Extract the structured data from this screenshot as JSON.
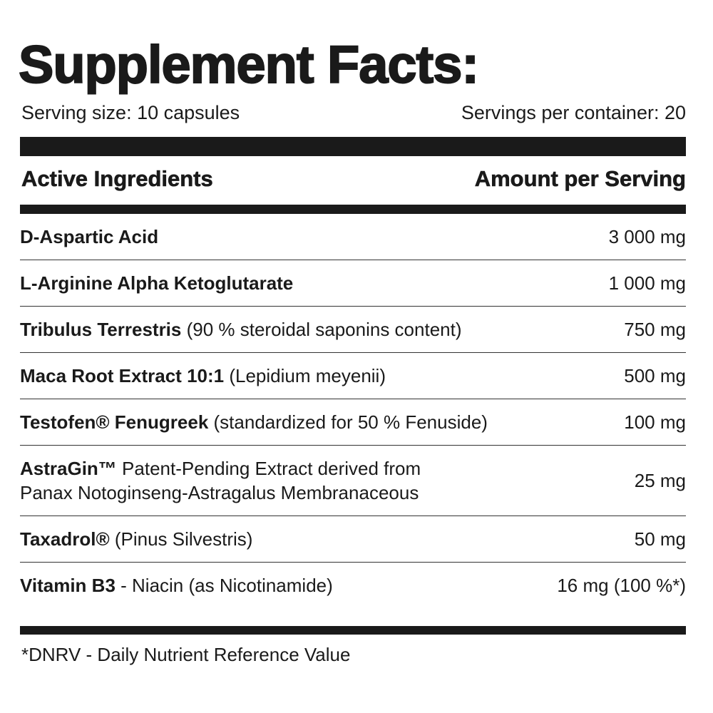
{
  "header": {
    "title": "Supplement Facts:",
    "serving_size": "Serving size: 10 capsules",
    "servings_per_container": "Servings per container: 20"
  },
  "table": {
    "columns": [
      "Active Ingredients",
      "Amount per Serving"
    ],
    "rows": [
      {
        "name": "D-Aspartic Acid",
        "detail": [],
        "amount": "3 000 mg"
      },
      {
        "name": "L-Arginine Alpha Ketoglutarate",
        "detail": [],
        "amount": "1 000 mg"
      },
      {
        "name": "Tribulus Terrestris",
        "detail": [
          "(90 % steroidal saponins content)"
        ],
        "amount": "750 mg"
      },
      {
        "name": "Maca Root Extract 10:1",
        "detail": [
          "(Lepidium meyenii)"
        ],
        "amount": "500 mg"
      },
      {
        "name": "Testofen® Fenugreek",
        "detail": [
          "(standardized for 50 % Fenuside)"
        ],
        "amount": "100 mg"
      },
      {
        "name": "AstraGin™",
        "detail": [
          "Patent-Pending Extract derived from",
          "Panax Notoginseng-Astragalus Membranaceous"
        ],
        "amount": "25 mg"
      },
      {
        "name": "Taxadrol®",
        "detail": [
          "(Pinus Silvestris)"
        ],
        "amount": "50 mg"
      },
      {
        "name": "Vitamin B3",
        "detail": [
          "- Niacin (as Nicotinamide)"
        ],
        "amount": "16 mg (100 %*)"
      }
    ]
  },
  "footnote": "*DNRV - Daily Nutrient Reference Value"
}
